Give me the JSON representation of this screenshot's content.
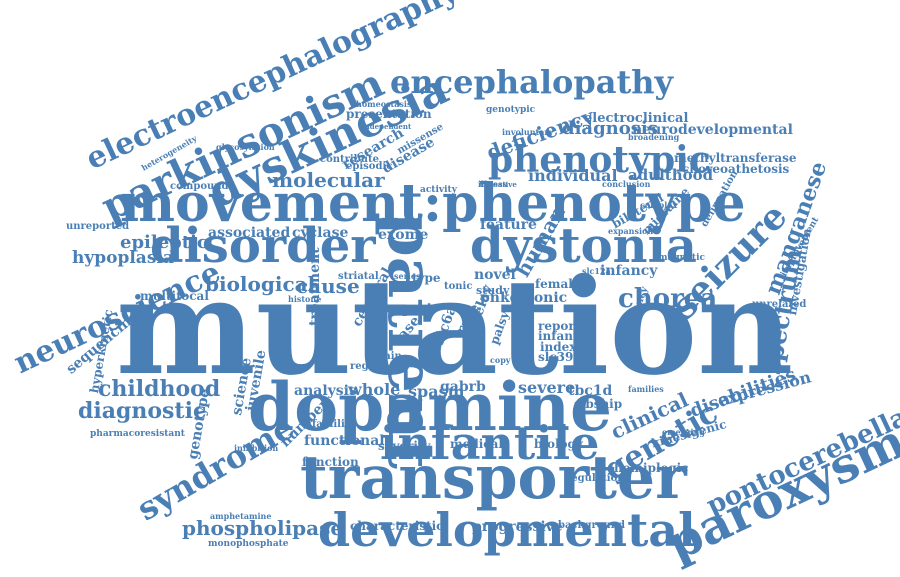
{
  "color": "#4a7fb5",
  "words": [
    "mutation",
    "dopamine",
    "transporter",
    "developmental",
    "infantile",
    "movement:phenotype",
    "disorder",
    "dystonia",
    "paroxysmal",
    "electroencephalography",
    "parkinsonism",
    "encephalopathy",
    "dyskinesia",
    "phenotypic",
    "patient",
    "neuroscience",
    "seizure",
    "syndrome",
    "pontocerebellar",
    "spectrum",
    "manganese",
    "genetic",
    "chorea",
    "phospholipase",
    "childhood",
    "diagnostic",
    "molecular",
    "deficiency",
    "diagnosis",
    "neurodevelopmental",
    "epileptic",
    "hypoplasia",
    "biological",
    "cause",
    "associated",
    "cyclase",
    "exome",
    "feature",
    "pnkd",
    "individual",
    "adulthood",
    "methyltransferase",
    "choreoathetosis",
    "clinical",
    "disabilities",
    "expression",
    "progressive",
    "characteristic",
    "medical",
    "biology",
    "functional",
    "function",
    "number",
    "juvenile",
    "genotype",
    "science",
    "spasm",
    "whole",
    "analysis",
    "severe",
    "treatment",
    "sequencing",
    "multifocal",
    "hyperkinetic",
    "pharmacoresistant",
    "research",
    "disease",
    "episodic",
    "presentation",
    "homeostasis",
    "electroclinical",
    "migraine",
    "infancy",
    "investigation",
    "unrelated",
    "bilateral",
    "hemiplegic",
    "kinesigenic",
    "regulation",
    "background",
    "monophosphate",
    "amphetamine",
    "inhibition",
    "familial",
    "severity",
    "gabrb",
    "tbc1d",
    "sibship",
    "slc39a",
    "index",
    "infant",
    "report",
    "clonic",
    "female",
    "novel",
    "human",
    "study",
    "tonic",
    "rare",
    "case",
    "brain",
    "region",
    "striatal",
    "histone",
    "prrt",
    "cerebral",
    "slc6a",
    "delay",
    "palsy",
    "families",
    "type",
    "series",
    "unreported",
    "compound",
    "heterogeneity",
    "glycosylation",
    "contribute",
    "missense",
    "activity",
    "copy",
    "illness",
    "slc12a",
    "complex",
    "delineation",
    "improvement",
    "magnetic",
    "conclusion",
    "genotypic",
    "involuntary",
    "broadening",
    "independent",
    "causative",
    "expansion",
    "frequency",
    "emerging"
  ]
}
